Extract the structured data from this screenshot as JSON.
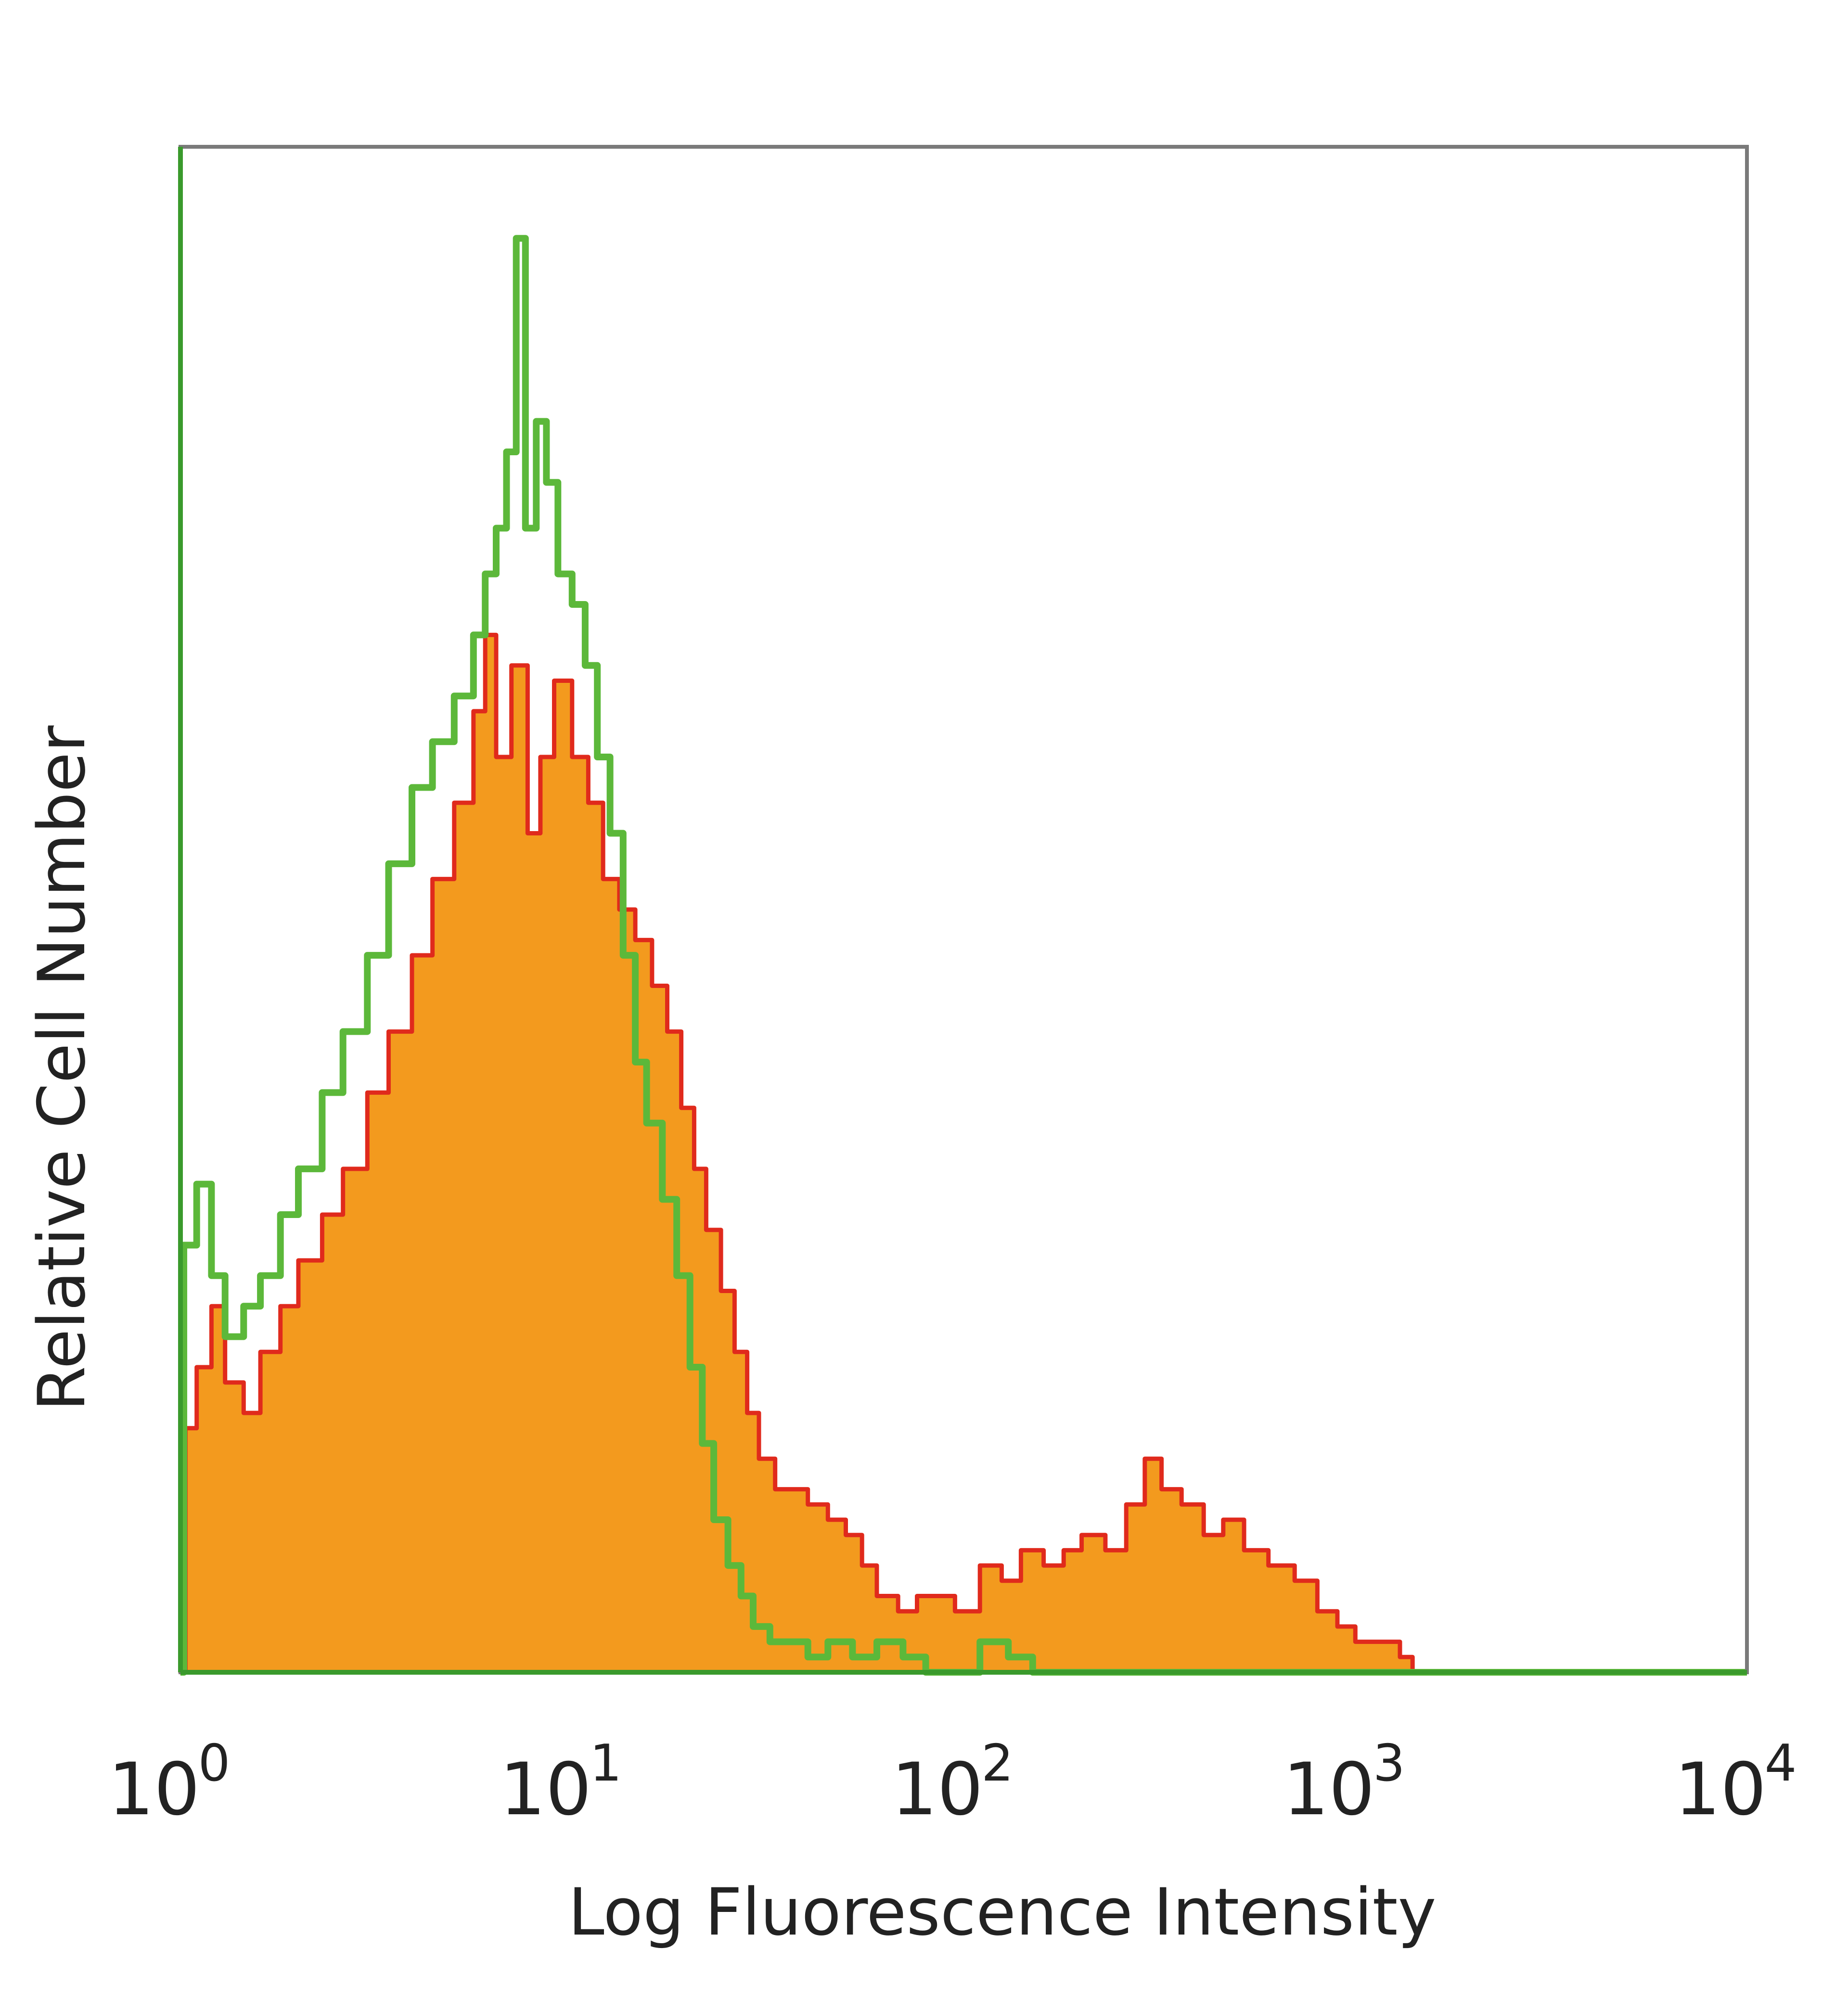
{
  "chart_data": {
    "type": "area",
    "title": "",
    "xlabel": "Log Fluorescence Intensity",
    "ylabel": "Relative Cell Number",
    "x_scale": "log",
    "xlim": [
      1,
      10000
    ],
    "ylim": [
      0,
      100
    ],
    "y_ticks_labeled": false,
    "grid": false,
    "legend": "none",
    "x_ticks": [
      {
        "value": 1,
        "base": "10",
        "exp": "0"
      },
      {
        "value": 10,
        "base": "10",
        "exp": "1"
      },
      {
        "value": 100,
        "base": "10",
        "exp": "2"
      },
      {
        "value": 1000,
        "base": "10",
        "exp": "3"
      },
      {
        "value": 10000,
        "base": "10",
        "exp": "4"
      }
    ],
    "series": [
      {
        "style": "filled-histogram",
        "color": "#f39a1e",
        "edge_color": "#e02a1c",
        "points": [
          [
            1.0,
            0
          ],
          [
            1.03,
            16
          ],
          [
            1.1,
            20
          ],
          [
            1.2,
            24
          ],
          [
            1.3,
            19
          ],
          [
            1.45,
            17
          ],
          [
            1.6,
            21
          ],
          [
            1.8,
            24
          ],
          [
            2.0,
            27
          ],
          [
            2.3,
            30
          ],
          [
            2.6,
            33
          ],
          [
            3.0,
            38
          ],
          [
            3.4,
            42
          ],
          [
            3.9,
            47
          ],
          [
            4.4,
            52
          ],
          [
            5.0,
            57
          ],
          [
            5.6,
            63
          ],
          [
            6.0,
            68
          ],
          [
            6.4,
            60
          ],
          [
            7.0,
            66
          ],
          [
            7.7,
            55
          ],
          [
            8.3,
            60
          ],
          [
            9.0,
            65
          ],
          [
            10.0,
            60
          ],
          [
            11.0,
            57
          ],
          [
            12.0,
            52
          ],
          [
            13.2,
            50
          ],
          [
            14.5,
            48
          ],
          [
            16.0,
            45
          ],
          [
            17.5,
            42
          ],
          [
            19.0,
            37
          ],
          [
            20.5,
            33
          ],
          [
            22.0,
            29
          ],
          [
            24.0,
            25
          ],
          [
            26.0,
            21
          ],
          [
            28.0,
            17
          ],
          [
            30.0,
            14
          ],
          [
            33.0,
            12
          ],
          [
            36.0,
            12
          ],
          [
            40.0,
            11
          ],
          [
            45.0,
            10
          ],
          [
            50.0,
            9
          ],
          [
            55.0,
            7
          ],
          [
            60.0,
            5
          ],
          [
            68.0,
            4
          ],
          [
            76.0,
            5
          ],
          [
            85.0,
            5
          ],
          [
            95.0,
            4
          ],
          [
            110.0,
            7
          ],
          [
            125.0,
            6
          ],
          [
            140.0,
            8
          ],
          [
            160.0,
            7
          ],
          [
            180.0,
            8
          ],
          [
            200.0,
            9
          ],
          [
            230.0,
            8
          ],
          [
            260.0,
            11
          ],
          [
            290.0,
            14
          ],
          [
            320.0,
            12
          ],
          [
            360.0,
            11
          ],
          [
            410.0,
            9
          ],
          [
            460.0,
            10
          ],
          [
            520.0,
            8
          ],
          [
            600.0,
            7
          ],
          [
            700.0,
            6
          ],
          [
            800.0,
            4
          ],
          [
            900.0,
            3
          ],
          [
            1000.0,
            2
          ],
          [
            1150.0,
            2
          ],
          [
            1300.0,
            1
          ],
          [
            1400.0,
            0
          ]
        ]
      },
      {
        "style": "histogram-outline",
        "color": "#5cb83a",
        "points": [
          [
            1.0,
            0
          ],
          [
            1.02,
            28
          ],
          [
            1.1,
            32
          ],
          [
            1.2,
            26
          ],
          [
            1.3,
            22
          ],
          [
            1.45,
            24
          ],
          [
            1.6,
            26
          ],
          [
            1.8,
            30
          ],
          [
            2.0,
            33
          ],
          [
            2.3,
            38
          ],
          [
            2.6,
            42
          ],
          [
            3.0,
            47
          ],
          [
            3.4,
            53
          ],
          [
            3.9,
            58
          ],
          [
            4.4,
            61
          ],
          [
            5.0,
            64
          ],
          [
            5.6,
            68
          ],
          [
            6.0,
            72
          ],
          [
            6.4,
            75
          ],
          [
            6.8,
            80
          ],
          [
            7.2,
            94
          ],
          [
            7.6,
            75
          ],
          [
            8.1,
            82
          ],
          [
            8.6,
            78
          ],
          [
            9.2,
            72
          ],
          [
            10.0,
            70
          ],
          [
            10.8,
            66
          ],
          [
            11.6,
            60
          ],
          [
            12.5,
            55
          ],
          [
            13.5,
            47
          ],
          [
            14.5,
            40
          ],
          [
            15.5,
            36
          ],
          [
            17.0,
            31
          ],
          [
            18.5,
            26
          ],
          [
            20.0,
            20
          ],
          [
            21.5,
            15
          ],
          [
            23.0,
            10
          ],
          [
            25.0,
            7
          ],
          [
            27.0,
            5
          ],
          [
            29.0,
            3
          ],
          [
            32.0,
            2
          ],
          [
            36.0,
            2
          ],
          [
            40.0,
            1
          ],
          [
            45.0,
            2
          ],
          [
            52.0,
            1
          ],
          [
            60.0,
            2
          ],
          [
            70.0,
            1
          ],
          [
            80.0,
            0
          ],
          [
            110.0,
            2
          ],
          [
            130.0,
            1
          ],
          [
            150.0,
            0
          ],
          [
            10000.0,
            0
          ]
        ]
      }
    ]
  }
}
